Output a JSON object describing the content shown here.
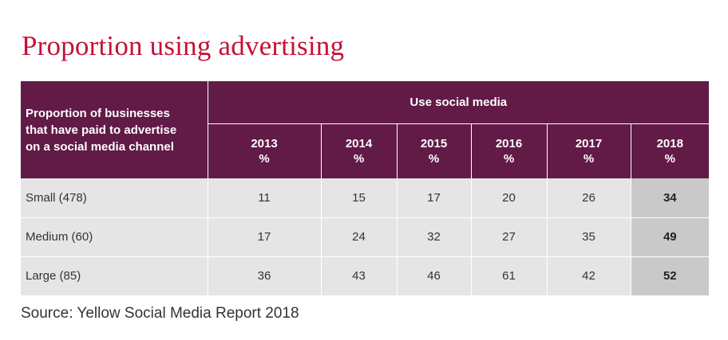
{
  "title": "Proportion using advertising",
  "source": "Source: Yellow Social Media Report 2018",
  "chart_data": {
    "type": "table",
    "stub_header": "Proportion of businesses that have paid to advertise on a social media channel",
    "group_header": "Use social media",
    "columns": [
      {
        "year": "2013",
        "unit": "%"
      },
      {
        "year": "2014",
        "unit": "%"
      },
      {
        "year": "2015",
        "unit": "%"
      },
      {
        "year": "2016",
        "unit": "%"
      },
      {
        "year": "2017",
        "unit": "%"
      },
      {
        "year": "2018",
        "unit": "%"
      }
    ],
    "rows": [
      {
        "label": "Small (478)",
        "values": [
          "11",
          "15",
          "17",
          "20",
          "26",
          "34"
        ]
      },
      {
        "label": "Medium (60)",
        "values": [
          "17",
          "24",
          "32",
          "27",
          "35",
          "49"
        ]
      },
      {
        "label": "Large (85)",
        "values": [
          "36",
          "43",
          "46",
          "61",
          "42",
          "52"
        ]
      }
    ],
    "highlight_column": "2018",
    "colors": {
      "title": "#c4113a",
      "header_bg": "#621a47",
      "row_bg": "#e5e5e5",
      "highlight_bg": "#c9c9c9"
    }
  }
}
